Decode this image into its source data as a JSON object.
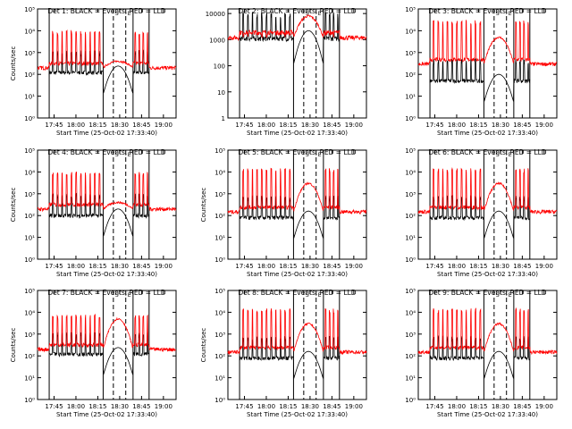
{
  "colors": {
    "events": "#000000",
    "lld": "#ff0000",
    "axes": "#000000",
    "background": "#ffffff"
  },
  "common": {
    "xlabel": "Start Time (25-Oct-02 17:33:40)",
    "x_tick_labels": [
      "17:45",
      "18:00",
      "18:15",
      "18:30",
      "18:45",
      "19:00"
    ],
    "x_tick_minutes": [
      11.33,
      26.33,
      41.33,
      56.33,
      71.33,
      86.33
    ],
    "x_range_minutes": [
      0,
      95
    ],
    "marker_lines_solid_minutes": [
      0,
      8,
      45,
      65.5,
      76.5,
      95
    ],
    "marker_lines_dashed_minutes": [
      52,
      60.5
    ],
    "marker_tags": [
      "S",
      "E"
    ],
    "series": [
      "Events",
      "LLD"
    ],
    "grid": false,
    "legend": "none"
  },
  "chart_data": [
    {
      "type": "line",
      "title": "Det 1: BLACK = Events, RED = LLD",
      "ylabel": "Counts/sec",
      "yscale": "log",
      "y_tick_labels": [
        "10⁰",
        "10¹",
        "10²",
        "10³",
        "10⁴",
        "10⁵"
      ],
      "ylim": [
        1,
        100000
      ],
      "series": [
        {
          "name": "Events",
          "level": 120
        },
        {
          "name": "LLD",
          "level": 200,
          "spike_peak": 10000,
          "flare_peak": 400
        }
      ]
    },
    {
      "type": "line",
      "title": "Det 2: BLACK = Events, RED = LLD",
      "ylabel": "",
      "yscale": "log",
      "y_tick_labels": [
        "1",
        "10",
        "100",
        "1000",
        "10000"
      ],
      "ylim": [
        1,
        15000
      ],
      "series": [
        {
          "name": "Events",
          "level": 1100
        },
        {
          "name": "LLD",
          "level": 1200,
          "spike_peak": 2000,
          "flare_peak": 8000
        }
      ]
    },
    {
      "type": "line",
      "title": "Det 3: BLACK = Events, RED = LLD",
      "ylabel": "",
      "yscale": "log",
      "y_tick_labels": [
        "10⁰",
        "10¹",
        "10²",
        "10³",
        "10⁴",
        "10⁵"
      ],
      "ylim": [
        1,
        100000
      ],
      "series": [
        {
          "name": "Events",
          "level": 50
        },
        {
          "name": "LLD",
          "level": 300,
          "spike_peak": 30000,
          "flare_peak": 5000
        }
      ]
    },
    {
      "type": "line",
      "title": "Det 4: BLACK = Events, RED = LLD",
      "ylabel": "Counts/sec",
      "yscale": "log",
      "y_tick_labels": [
        "10⁰",
        "10¹",
        "10²",
        "10³",
        "10⁴",
        "10⁵"
      ],
      "ylim": [
        1,
        100000
      ],
      "series": [
        {
          "name": "Events",
          "level": 100
        },
        {
          "name": "LLD",
          "level": 200,
          "spike_peak": 10000,
          "flare_peak": 400
        }
      ]
    },
    {
      "type": "line",
      "title": "Det 5: BLACK = Events, RED = LLD",
      "ylabel": "Counts/sec",
      "yscale": "log",
      "y_tick_labels": [
        "10⁰",
        "10¹",
        "10²",
        "10³",
        "10⁴",
        "10⁵"
      ],
      "ylim": [
        1,
        100000
      ],
      "series": [
        {
          "name": "Events",
          "level": 80
        },
        {
          "name": "LLD",
          "level": 150,
          "spike_peak": 15000,
          "flare_peak": 3000
        }
      ]
    },
    {
      "type": "line",
      "title": "Det 6: BLACK = Events, RED = LLD",
      "ylabel": "",
      "yscale": "log",
      "y_tick_labels": [
        "10⁰",
        "10¹",
        "10²",
        "10³",
        "10⁴",
        "10⁵"
      ],
      "ylim": [
        1,
        100000
      ],
      "series": [
        {
          "name": "Events",
          "level": 80
        },
        {
          "name": "LLD",
          "level": 150,
          "spike_peak": 15000,
          "flare_peak": 3000
        }
      ]
    },
    {
      "type": "line",
      "title": "Det 7: BLACK = Events, RED = LLD",
      "ylabel": "Counts/sec",
      "yscale": "log",
      "y_tick_labels": [
        "10⁰",
        "10¹",
        "10²",
        "10³",
        "10⁴",
        "10⁵"
      ],
      "ylim": [
        1,
        100000
      ],
      "series": [
        {
          "name": "Events",
          "level": 120
        },
        {
          "name": "LLD",
          "level": 200,
          "spike_peak": 8000,
          "flare_peak": 5000
        }
      ]
    },
    {
      "type": "line",
      "title": "Det 8: BLACK = Events, RED = LLD",
      "ylabel": "Counts/sec",
      "yscale": "log",
      "y_tick_labels": [
        "10⁰",
        "10¹",
        "10²",
        "10³",
        "10⁴",
        "10⁵"
      ],
      "ylim": [
        1,
        100000
      ],
      "series": [
        {
          "name": "Events",
          "level": 80
        },
        {
          "name": "LLD",
          "level": 150,
          "spike_peak": 15000,
          "flare_peak": 3000
        }
      ]
    },
    {
      "type": "line",
      "title": "Det 9: BLACK = Events, RED = LLD",
      "ylabel": "",
      "yscale": "log",
      "y_tick_labels": [
        "10⁰",
        "10¹",
        "10²",
        "10³",
        "10⁴",
        "10⁵"
      ],
      "ylim": [
        1,
        100000
      ],
      "series": [
        {
          "name": "Events",
          "level": 80
        },
        {
          "name": "LLD",
          "level": 150,
          "spike_peak": 15000,
          "flare_peak": 3000
        }
      ]
    }
  ]
}
